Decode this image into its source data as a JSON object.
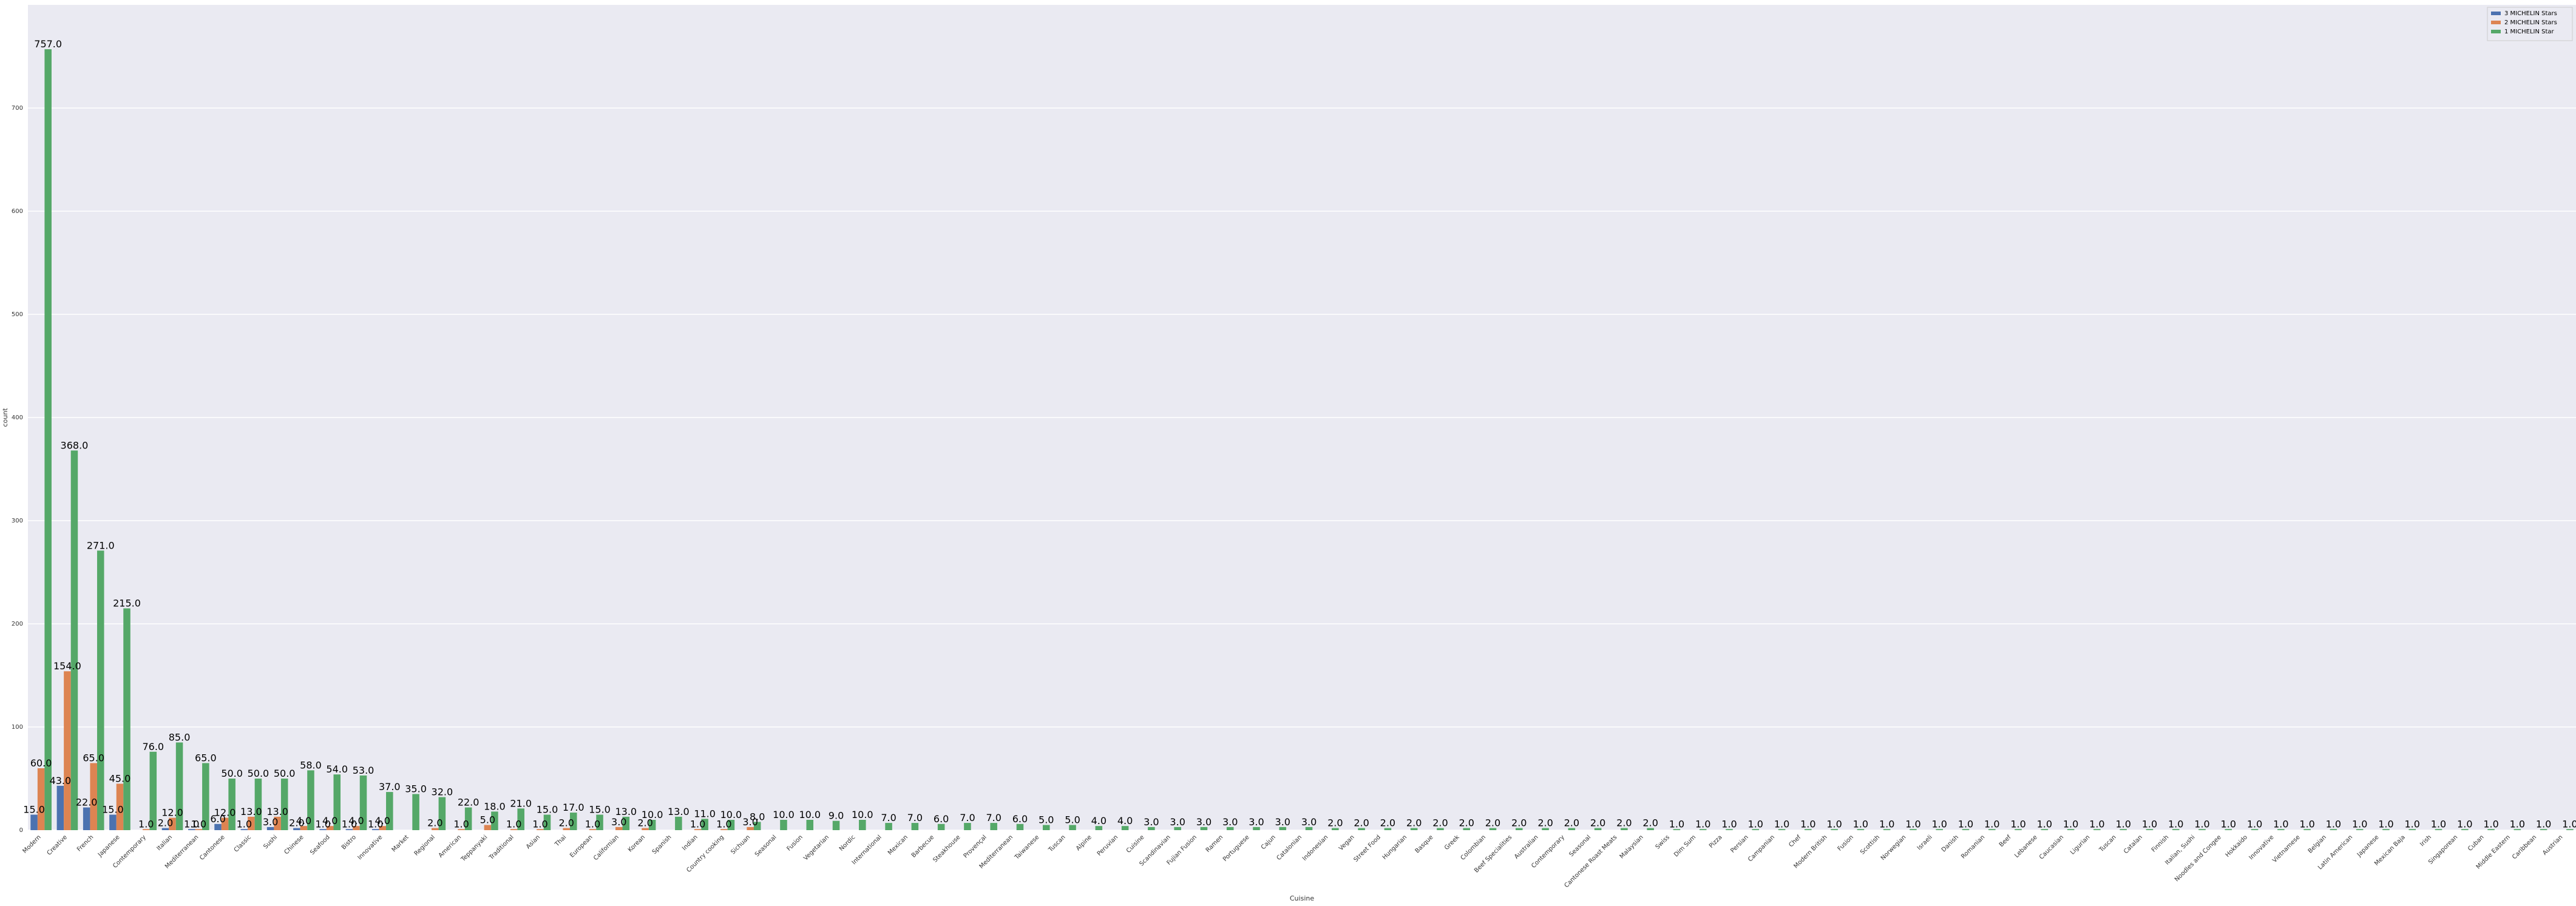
{
  "chart_data": {
    "type": "bar",
    "xlabel": "Cuisine",
    "ylabel": "count",
    "ylim": [
      0,
      800
    ],
    "yticks": [
      0,
      100,
      200,
      300,
      400,
      500,
      600,
      700
    ],
    "grid": true,
    "legend_position": "top-right",
    "categories": [
      "Modern",
      "Creative",
      "French",
      "Japanese",
      "Contemporary",
      "Italian",
      "Mediterranean",
      "Cantonese",
      "Classic",
      "Sushi",
      "Chinese",
      "Seafood",
      "Bistro",
      "Innovative",
      "Market",
      "Regional",
      "American",
      "Teppanyaki",
      "Traditional",
      "Asian",
      "Thai",
      "European",
      "Californian",
      "Korean",
      "Spanish",
      "Indian",
      "Country cooking",
      "Sichuan",
      "Seasonal",
      "Fusion",
      "Vegetarian",
      "Nordic",
      "International",
      "Mexican",
      "Barbecue",
      "Steakhouse",
      "Provençal",
      "Mediterranean",
      "Taiwanese",
      "Tuscan",
      "Alpine",
      "Peruvian",
      "Cuisine",
      "Scandinavian",
      "Fujian Fusion",
      "Ramen",
      "Portuguese",
      "Cajun",
      "Catalonian",
      "Indonesian",
      "Vegan",
      "Street Food",
      "Hungarian",
      "Basque",
      "Greek",
      "Colombian",
      "Beef Specialities",
      "Australian",
      "Contemporary",
      "Seasonal",
      "Cantonese Roast Meats",
      "Malaysian",
      "Swiss",
      "Dim Sum",
      "Pizza",
      "Persian",
      "Campanian",
      "Chef",
      "Modern British",
      "Fusion",
      "Scottish",
      "Norwegian",
      "Israeli",
      "Danish",
      "Romanian",
      "Beef",
      "Lebanese",
      "Caucasian",
      "Ligurian",
      "Tuscan",
      "Catalan",
      "Finnish",
      "Italian, Sushi",
      "Noodles and Congee",
      "Hokkaido",
      "Innovative",
      "Vietnamese",
      "Belgian",
      "Latin American",
      "Japanese",
      "Mexican Baja",
      "Irish",
      "Singaporean",
      "Cuban",
      "Middle Eastern",
      "Caribbean",
      "Austrian"
    ],
    "series": [
      {
        "name": "3 MICHELIN Stars",
        "color": "#4c72b0",
        "values": [
          15,
          43,
          22,
          15,
          null,
          2,
          1,
          6,
          1,
          3,
          2,
          1,
          1,
          1,
          null,
          null,
          null,
          null,
          null,
          null,
          null,
          null,
          null,
          null,
          null,
          null,
          null,
          null,
          null,
          null,
          null,
          null,
          null,
          null,
          null,
          null,
          null,
          null,
          null,
          null,
          null,
          null,
          null,
          null,
          null,
          null,
          null,
          null,
          null,
          null,
          null,
          null,
          null,
          null,
          null,
          null,
          null,
          null,
          null,
          null,
          null,
          null,
          null,
          null,
          null,
          null,
          null,
          null,
          null,
          null,
          null,
          null,
          null,
          null,
          null,
          null,
          null,
          null,
          null,
          null,
          null,
          null,
          null,
          null,
          null,
          null,
          null,
          null,
          null,
          null,
          null,
          null,
          null,
          null,
          null,
          null,
          null
        ]
      },
      {
        "name": "2 MICHELIN Stars",
        "color": "#dd8452",
        "values": [
          60,
          154,
          65,
          45,
          1,
          12,
          1,
          12,
          13,
          13,
          4,
          4,
          4,
          4,
          null,
          2,
          1,
          5,
          1,
          1,
          2,
          1,
          3,
          2,
          null,
          1,
          1,
          3,
          null,
          null,
          null,
          null,
          null,
          null,
          null,
          null,
          null,
          null,
          null,
          null,
          null,
          null,
          null,
          null,
          null,
          null,
          null,
          null,
          null,
          null,
          null,
          null,
          null,
          null,
          null,
          null,
          null,
          null,
          null,
          null,
          null,
          null,
          null,
          null,
          null,
          null,
          null,
          null,
          null,
          null,
          null,
          null,
          null,
          null,
          null,
          null,
          null,
          null,
          null,
          null,
          null,
          null,
          null,
          null,
          null,
          null,
          null,
          null,
          null,
          null,
          null,
          null,
          null,
          null,
          null,
          null,
          null
        ]
      },
      {
        "name": "1 MICHELIN Star",
        "color": "#55a868",
        "values": [
          757,
          368,
          271,
          215,
          76,
          85,
          65,
          50,
          50,
          50,
          58,
          54,
          53,
          37,
          35,
          32,
          22,
          18,
          21,
          15,
          17,
          15,
          13,
          10,
          13,
          11,
          10,
          8,
          10,
          10,
          9,
          10,
          7,
          7,
          6,
          7,
          7,
          6,
          5,
          5,
          4,
          4,
          3,
          3,
          3,
          3,
          3,
          3,
          3,
          2,
          2,
          2,
          2,
          2,
          2,
          2,
          2,
          2,
          2,
          2,
          2,
          2,
          1,
          1,
          1,
          1,
          1,
          1,
          1,
          1,
          1,
          1,
          1,
          1,
          1,
          1,
          1,
          1,
          1,
          1,
          1,
          1,
          1,
          1,
          1,
          1,
          1,
          1,
          1,
          1,
          1,
          1,
          1,
          1,
          1,
          1,
          1
        ]
      }
    ]
  }
}
